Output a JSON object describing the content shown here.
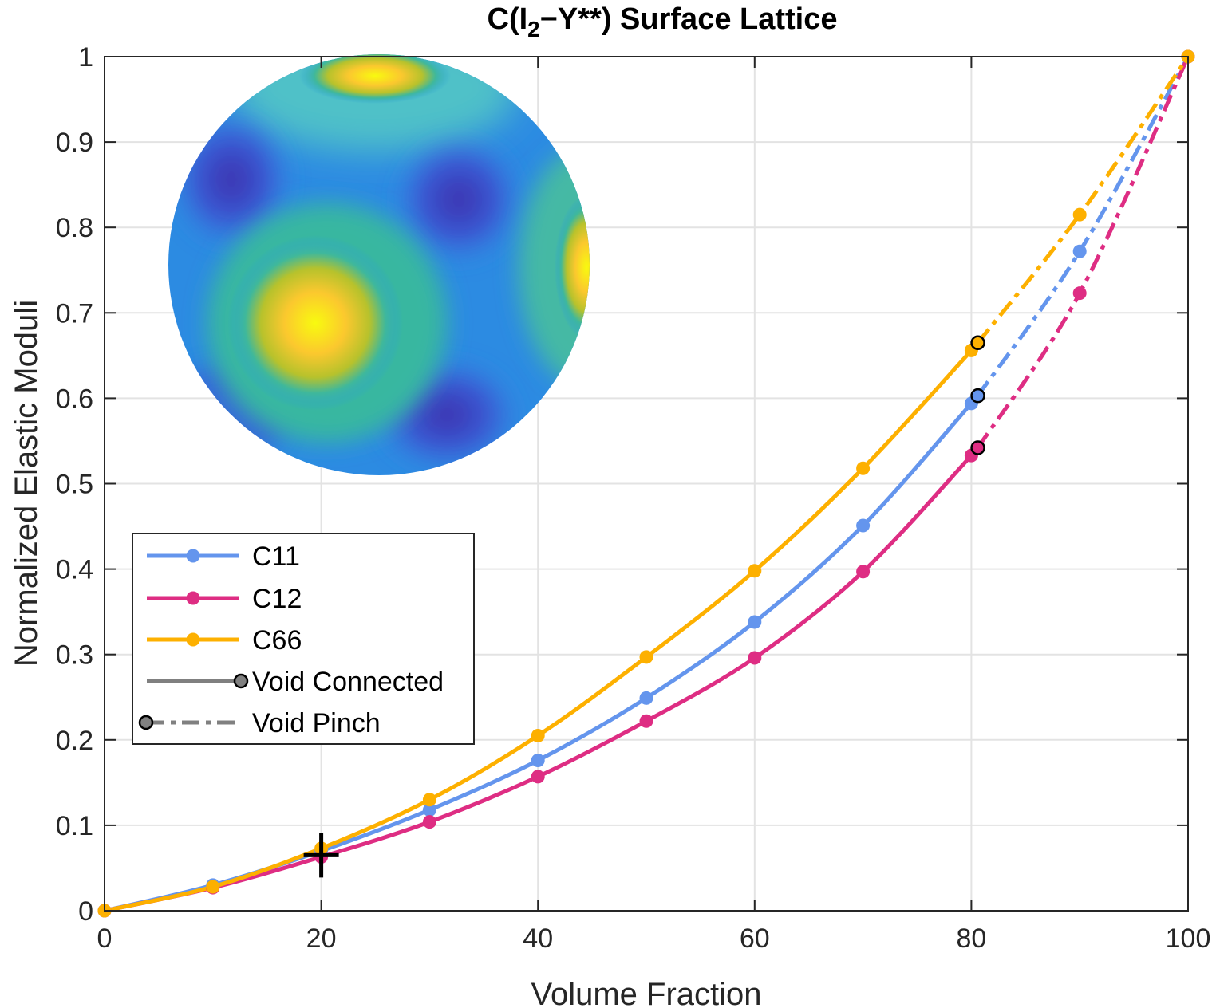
{
  "chart_data": {
    "type": "line",
    "title": "C(I2−Y**) Surface Lattice",
    "title_parts": {
      "prefix": "C(I",
      "subscript": "2",
      "suffix": "−Y**) Surface Lattice"
    },
    "xlabel": "Volume Fraction",
    "ylabel": "Normalized Elastic Moduli",
    "xlim": [
      0,
      100
    ],
    "ylim": [
      0,
      1
    ],
    "xticks": [
      0,
      20,
      40,
      60,
      80,
      100
    ],
    "xtick_labels": [
      "0",
      "20",
      "40",
      "60",
      "80",
      "100"
    ],
    "yticks": [
      0,
      0.1,
      0.2,
      0.3,
      0.4,
      0.5,
      0.6,
      0.7,
      0.8,
      0.9,
      1
    ],
    "ytick_labels": [
      "0",
      "0.1",
      "0.2",
      "0.3",
      "0.4",
      "0.5",
      "0.6",
      "0.7",
      "0.8",
      "0.9",
      "1"
    ],
    "grid": true,
    "legend_position": "lower-left",
    "x": [
      0,
      10,
      20,
      30,
      40,
      50,
      60,
      70,
      80,
      90,
      100
    ],
    "transition_x": 80.6,
    "series": [
      {
        "name": "C11",
        "color": "#6495ED",
        "values": [
          0,
          0.03,
          0.07,
          0.118,
          0.176,
          0.249,
          0.338,
          0.451,
          0.594,
          0.772,
          1.0
        ],
        "transition_y": 0.603
      },
      {
        "name": "C12",
        "color": "#DE2D83",
        "values": [
          0,
          0.027,
          0.063,
          0.104,
          0.157,
          0.222,
          0.296,
          0.397,
          0.533,
          0.723,
          1.0
        ],
        "transition_y": 0.542
      },
      {
        "name": "C66",
        "color": "#FDB000",
        "values": [
          0,
          0.028,
          0.073,
          0.13,
          0.205,
          0.297,
          0.398,
          0.518,
          0.656,
          0.815,
          1.0
        ],
        "transition_y": 0.665
      }
    ],
    "legend_extra": [
      {
        "label": "Void Connected",
        "style": "solid",
        "color": "#808080"
      },
      {
        "label": "Void Pinch",
        "style": "dashdot",
        "color": "#808080"
      }
    ],
    "annotation_marker": {
      "x": 20,
      "y": 0.065,
      "symbol": "crosshair"
    },
    "inset": {
      "description_icon": "sphere-surface-icon"
    }
  }
}
